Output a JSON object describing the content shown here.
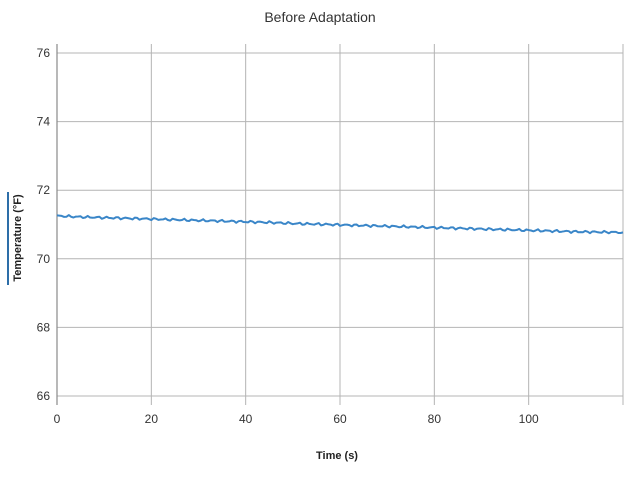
{
  "chart_data": {
    "type": "line",
    "title": "Before Adaptation",
    "xlabel": "Time (s)",
    "ylabel": "Temperature (°F)",
    "xlim": [
      0,
      120
    ],
    "ylim": [
      66,
      76
    ],
    "x_ticks": [
      0,
      20,
      40,
      60,
      80,
      100
    ],
    "y_ticks": [
      66,
      68,
      70,
      72,
      74,
      76
    ],
    "grid": true,
    "legend": "none",
    "series": [
      {
        "color": "#3a86c8",
        "x": [
          0,
          5,
          10,
          15,
          20,
          25,
          30,
          35,
          40,
          45,
          50,
          55,
          60,
          65,
          70,
          75,
          80,
          85,
          90,
          95,
          100,
          105,
          110,
          115,
          120
        ],
        "y": [
          71.25,
          71.22,
          71.2,
          71.18,
          71.16,
          71.14,
          71.12,
          71.1,
          71.08,
          71.06,
          71.03,
          71.01,
          70.99,
          70.97,
          70.95,
          70.93,
          70.91,
          70.89,
          70.87,
          70.85,
          70.83,
          70.81,
          70.79,
          70.78,
          70.77
        ]
      }
    ]
  }
}
